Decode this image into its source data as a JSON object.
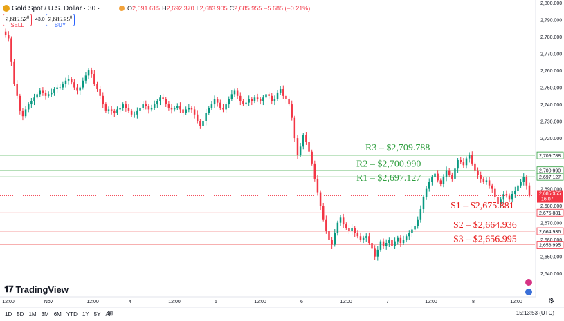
{
  "header": {
    "symbol": "Gold Spot / U.S. Dollar · 30 ·",
    "ohlc": [
      {
        "k": "O",
        "v": "2,691.615"
      },
      {
        "k": "H",
        "v": "2,692.370"
      },
      {
        "k": "L",
        "v": "2,683.905"
      },
      {
        "k": "C",
        "v": "2,685.955"
      },
      {
        "k": "",
        "v": "−5.685 (−0.21%)"
      }
    ],
    "sell_price": "2,685.52",
    "sell_sup": "0",
    "sell_label": "SELL",
    "spread": "43.0",
    "buy_price": "2,685.95",
    "buy_sup": "0",
    "buy_label": "BUY"
  },
  "branding": {
    "logo": "TradingView"
  },
  "range_buttons": [
    "1D",
    "5D",
    "1M",
    "3M",
    "6M",
    "YTD",
    "1Y",
    "5Y",
    "All"
  ],
  "clock": "15:13:53 (UTC)",
  "colors": {
    "up": "#089981",
    "down": "#f23645",
    "support": "#e81c1c",
    "resistance": "#2e9e3e"
  },
  "chart_data": {
    "type": "candlestick",
    "y_axis_ticks": [
      2800,
      2790,
      2780,
      2770,
      2760,
      2750,
      2740,
      2730,
      2720,
      2690,
      2680,
      2670,
      2660,
      2650,
      2640
    ],
    "ylim": [
      2636,
      2800
    ],
    "x_ticks": [
      "12:00",
      "Nov",
      "12:00",
      "4",
      "12:00",
      "5",
      "12:00",
      "6",
      "12:00",
      "7",
      "12:00",
      "8",
      "12:00"
    ],
    "price_tag": {
      "value": "2,685.955",
      "countdown": "16:07"
    },
    "levels": [
      {
        "name": "R3",
        "value": 2709.788,
        "label": "R3 – $2,709.788",
        "axis": "2,709.788",
        "kind": "resistance"
      },
      {
        "name": "R2",
        "value": 2700.99,
        "label": "R2 – $2,700.990",
        "axis": "2,700.990",
        "kind": "resistance"
      },
      {
        "name": "R1",
        "value": 2697.127,
        "label": "R1 – $2,697.127",
        "axis": "2,697.127",
        "kind": "resistance"
      },
      {
        "name": "S1",
        "value": 2675.881,
        "label": "S1 – $2,675.881",
        "axis": "2,675.881",
        "kind": "support"
      },
      {
        "name": "S2",
        "value": 2664.936,
        "label": "S2 – $2,664.936",
        "axis": "2,664.936",
        "kind": "support"
      },
      {
        "name": "S3",
        "value": 2656.995,
        "label": "S3 – $2,656.995",
        "axis": "2,656.995",
        "kind": "support"
      }
    ],
    "close_path": [
      2783,
      2781,
      2779,
      2765,
      2752,
      2745,
      2736,
      2733,
      2737,
      2740,
      2742,
      2744,
      2746,
      2748,
      2747,
      2745,
      2746,
      2747,
      2749,
      2750,
      2750,
      2752,
      2754,
      2755,
      2753,
      2750,
      2748,
      2750,
      2754,
      2757,
      2760,
      2758,
      2752,
      2749,
      2745,
      2740,
      2736,
      2737,
      2736,
      2735,
      2737,
      2738,
      2740,
      2738,
      2736,
      2734,
      2734,
      2736,
      2738,
      2740,
      2739,
      2737,
      2738,
      2740,
      2742,
      2744,
      2743,
      2740,
      2738,
      2737,
      2738,
      2739,
      2737,
      2735,
      2737,
      2738,
      2737,
      2734,
      2730,
      2727,
      2730,
      2735,
      2738,
      2740,
      2743,
      2741,
      2738,
      2737,
      2740,
      2743,
      2746,
      2748,
      2745,
      2742,
      2740,
      2741,
      2743,
      2742,
      2744,
      2743,
      2742,
      2744,
      2746,
      2745,
      2742,
      2743,
      2747,
      2749,
      2745,
      2743,
      2740,
      2732,
      2720,
      2710,
      2715,
      2722,
      2718,
      2712,
      2705,
      2696,
      2688,
      2680,
      2672,
      2665,
      2660,
      2657,
      2664,
      2670,
      2673,
      2669,
      2667,
      2665,
      2667,
      2664,
      2662,
      2660,
      2661,
      2662,
      2658,
      2655,
      2650,
      2654,
      2659,
      2656,
      2658,
      2660,
      2656,
      2659,
      2661,
      2658,
      2660,
      2662,
      2664,
      2666,
      2668,
      2672,
      2678,
      2685,
      2690,
      2694,
      2697,
      2699,
      2695,
      2693,
      2697,
      2701,
      2698,
      2696,
      2702,
      2707,
      2706,
      2704,
      2708,
      2710,
      2705,
      2701,
      2698,
      2696,
      2694,
      2695,
      2692,
      2690,
      2685,
      2681,
      2684,
      2687,
      2686,
      2684,
      2687,
      2689,
      2692,
      2694,
      2697,
      2692,
      2686
    ]
  }
}
